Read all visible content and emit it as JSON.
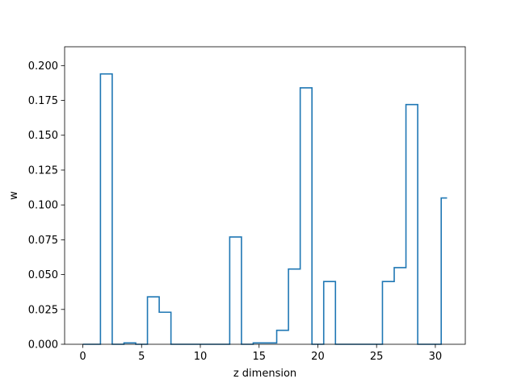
{
  "chart_data": {
    "type": "line",
    "drawstyle": "steps-mid",
    "title": "",
    "xlabel": "z dimension",
    "ylabel": "w",
    "xlim": [
      -1.55,
      32.55
    ],
    "ylim": [
      0,
      0.2135
    ],
    "xticks": [
      0,
      5,
      10,
      15,
      20,
      25,
      30
    ],
    "xtick_labels": [
      "0",
      "5",
      "10",
      "15",
      "20",
      "25",
      "30"
    ],
    "yticks": [
      0.0,
      0.025,
      0.05,
      0.075,
      0.1,
      0.125,
      0.15,
      0.175,
      0.2
    ],
    "ytick_labels": [
      "0.000",
      "0.025",
      "0.050",
      "0.075",
      "0.100",
      "0.125",
      "0.150",
      "0.175",
      "0.200"
    ],
    "grid": false,
    "legend": "none",
    "colors": {
      "line": "#1f77b4"
    },
    "series": [
      {
        "x": [
          0,
          1,
          2,
          3,
          4,
          5,
          6,
          7,
          8,
          9,
          10,
          11,
          12,
          13,
          14,
          15,
          16,
          17,
          18,
          19,
          20,
          21,
          22,
          23,
          24,
          25,
          26,
          27,
          28,
          29,
          30,
          31
        ],
        "values": [
          0,
          0,
          0.194,
          0,
          0.001,
          0,
          0.034,
          0.023,
          0,
          0,
          0,
          0,
          0,
          0.077,
          0,
          0.001,
          0.001,
          0.01,
          0.054,
          0.184,
          0,
          0.045,
          0,
          0,
          0,
          0,
          0.045,
          0.055,
          0.172,
          0,
          0,
          0.105
        ]
      }
    ]
  }
}
